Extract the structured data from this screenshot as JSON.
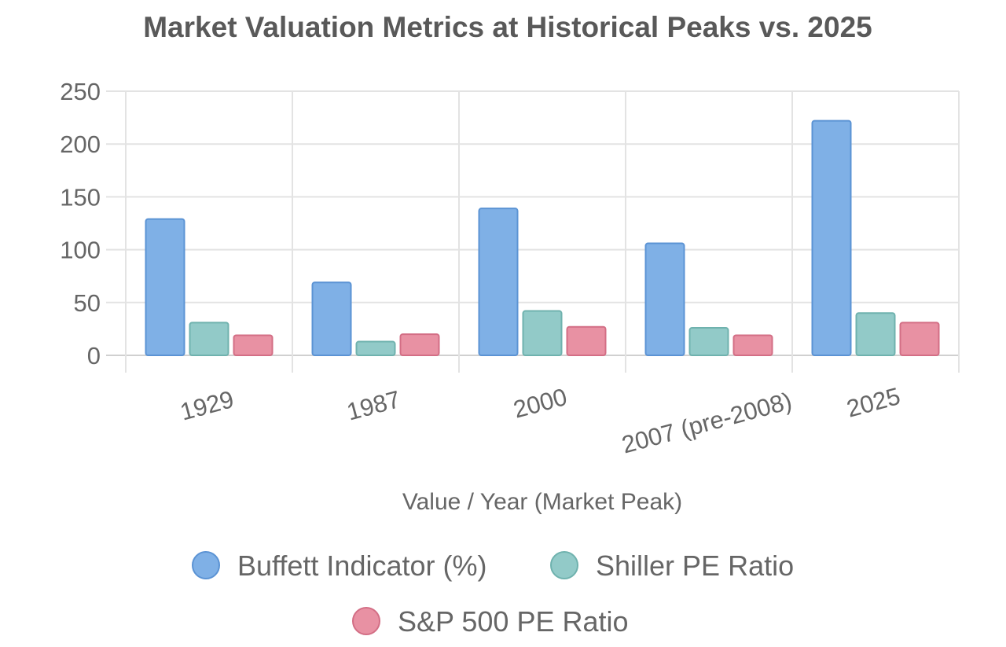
{
  "chart_data": {
    "type": "bar",
    "title": "Market Valuation Metrics at Historical Peaks vs. 2025",
    "xlabel": "Value / Year (Market Peak)",
    "ylabel": "",
    "categories": [
      "1929",
      "1987",
      "2000",
      "2007 (pre-2008)",
      "2025"
    ],
    "ylim": [
      0,
      250
    ],
    "yticks": [
      "0",
      "50",
      "100",
      "150",
      "200",
      "250"
    ],
    "grid": true,
    "legend_position": "bottom",
    "series": [
      {
        "name": "Buffett Indicator (%)",
        "values": [
          129,
          69,
          139,
          106,
          222
        ],
        "fill": "#7fb0e6",
        "stroke": "#5b93d4"
      },
      {
        "name": "Shiller PE Ratio",
        "values": [
          31,
          13,
          42,
          26,
          40
        ],
        "fill": "#92cac8",
        "stroke": "#6fb2ae"
      },
      {
        "name": "S&P 500 PE Ratio",
        "values": [
          19,
          20,
          27,
          19,
          31
        ],
        "fill": "#e891a3",
        "stroke": "#d36e85"
      }
    ]
  }
}
